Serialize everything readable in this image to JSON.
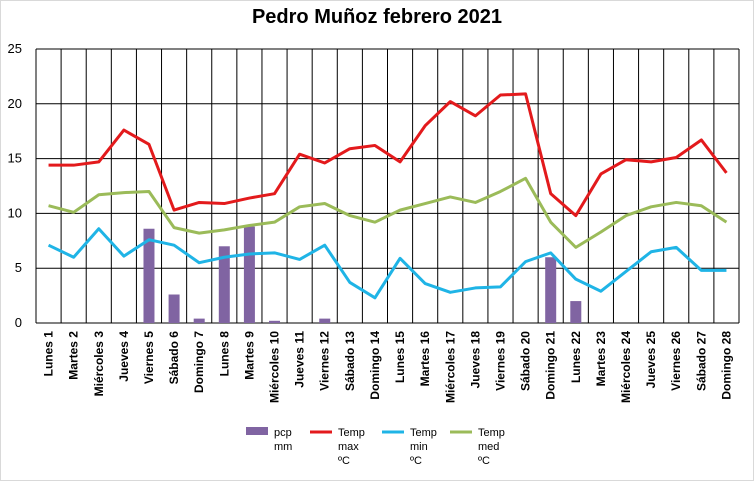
{
  "chart_data": {
    "type": "bar",
    "title": "Pedro Muñoz febrero 2021",
    "ylim": [
      0,
      25
    ],
    "yticks": [
      0,
      5,
      10,
      15,
      20,
      25
    ],
    "grid": true,
    "legend_position": "bottom",
    "categories": [
      "Lunes 1",
      "Martes 2",
      "Miércoles 3",
      "Jueves 4",
      "Viernes 5",
      "Sábado 6",
      "Domingo 7",
      "Lunes 8",
      "Martes 9",
      "Miércoles 10",
      "Jueves 11",
      "Viernes 12",
      "Sábado 13",
      "Domingo 14",
      "Lunes 15",
      "Martes 16",
      "Miércoles 17",
      "Jueves 18",
      "Viernes 19",
      "Sábado 20",
      "Domingo 21",
      "Lunes 22",
      "Martes 23",
      "Miércoles 24",
      "Jueves 25",
      "Viernes 26",
      "Sábado 27",
      "Domingo 28"
    ],
    "series": [
      {
        "name": "pcp mm",
        "kind": "bar",
        "color": "#8064a2",
        "values": [
          0,
          0,
          0,
          0,
          8.6,
          2.6,
          0.4,
          7.0,
          8.8,
          0.2,
          0,
          0.4,
          0,
          0,
          0,
          0,
          0,
          0,
          0,
          0,
          6.0,
          2.0,
          0,
          0,
          0,
          0,
          0,
          0
        ]
      },
      {
        "name": "Temp max ºC",
        "kind": "line",
        "color": "#e31a1c",
        "values": [
          14.4,
          14.4,
          14.7,
          17.6,
          16.3,
          10.3,
          11.0,
          10.9,
          11.4,
          11.8,
          15.4,
          14.6,
          15.9,
          16.2,
          14.7,
          18.0,
          20.2,
          18.9,
          20.8,
          20.9,
          11.8,
          9.8,
          13.6,
          14.9,
          14.7,
          15.1,
          16.7,
          13.7
        ]
      },
      {
        "name": "Temp min ºC",
        "kind": "line",
        "color": "#1fb4e6",
        "values": [
          7.1,
          6.0,
          8.6,
          6.1,
          7.6,
          7.1,
          5.5,
          6.0,
          6.3,
          6.4,
          5.8,
          7.1,
          3.7,
          2.3,
          5.9,
          3.6,
          2.8,
          3.2,
          3.3,
          5.6,
          6.4,
          4.0,
          2.9,
          4.7,
          6.5,
          6.9,
          4.8,
          4.8
        ]
      },
      {
        "name": "Temp med ºC",
        "kind": "line",
        "color": "#9bbb59",
        "values": [
          10.7,
          10.1,
          11.7,
          11.9,
          12.0,
          8.7,
          8.2,
          8.5,
          8.9,
          9.2,
          10.6,
          10.9,
          9.8,
          9.2,
          10.3,
          10.9,
          11.5,
          11.0,
          12.0,
          13.2,
          9.2,
          6.9,
          8.3,
          9.8,
          10.6,
          11.0,
          10.7,
          9.2
        ]
      }
    ]
  }
}
